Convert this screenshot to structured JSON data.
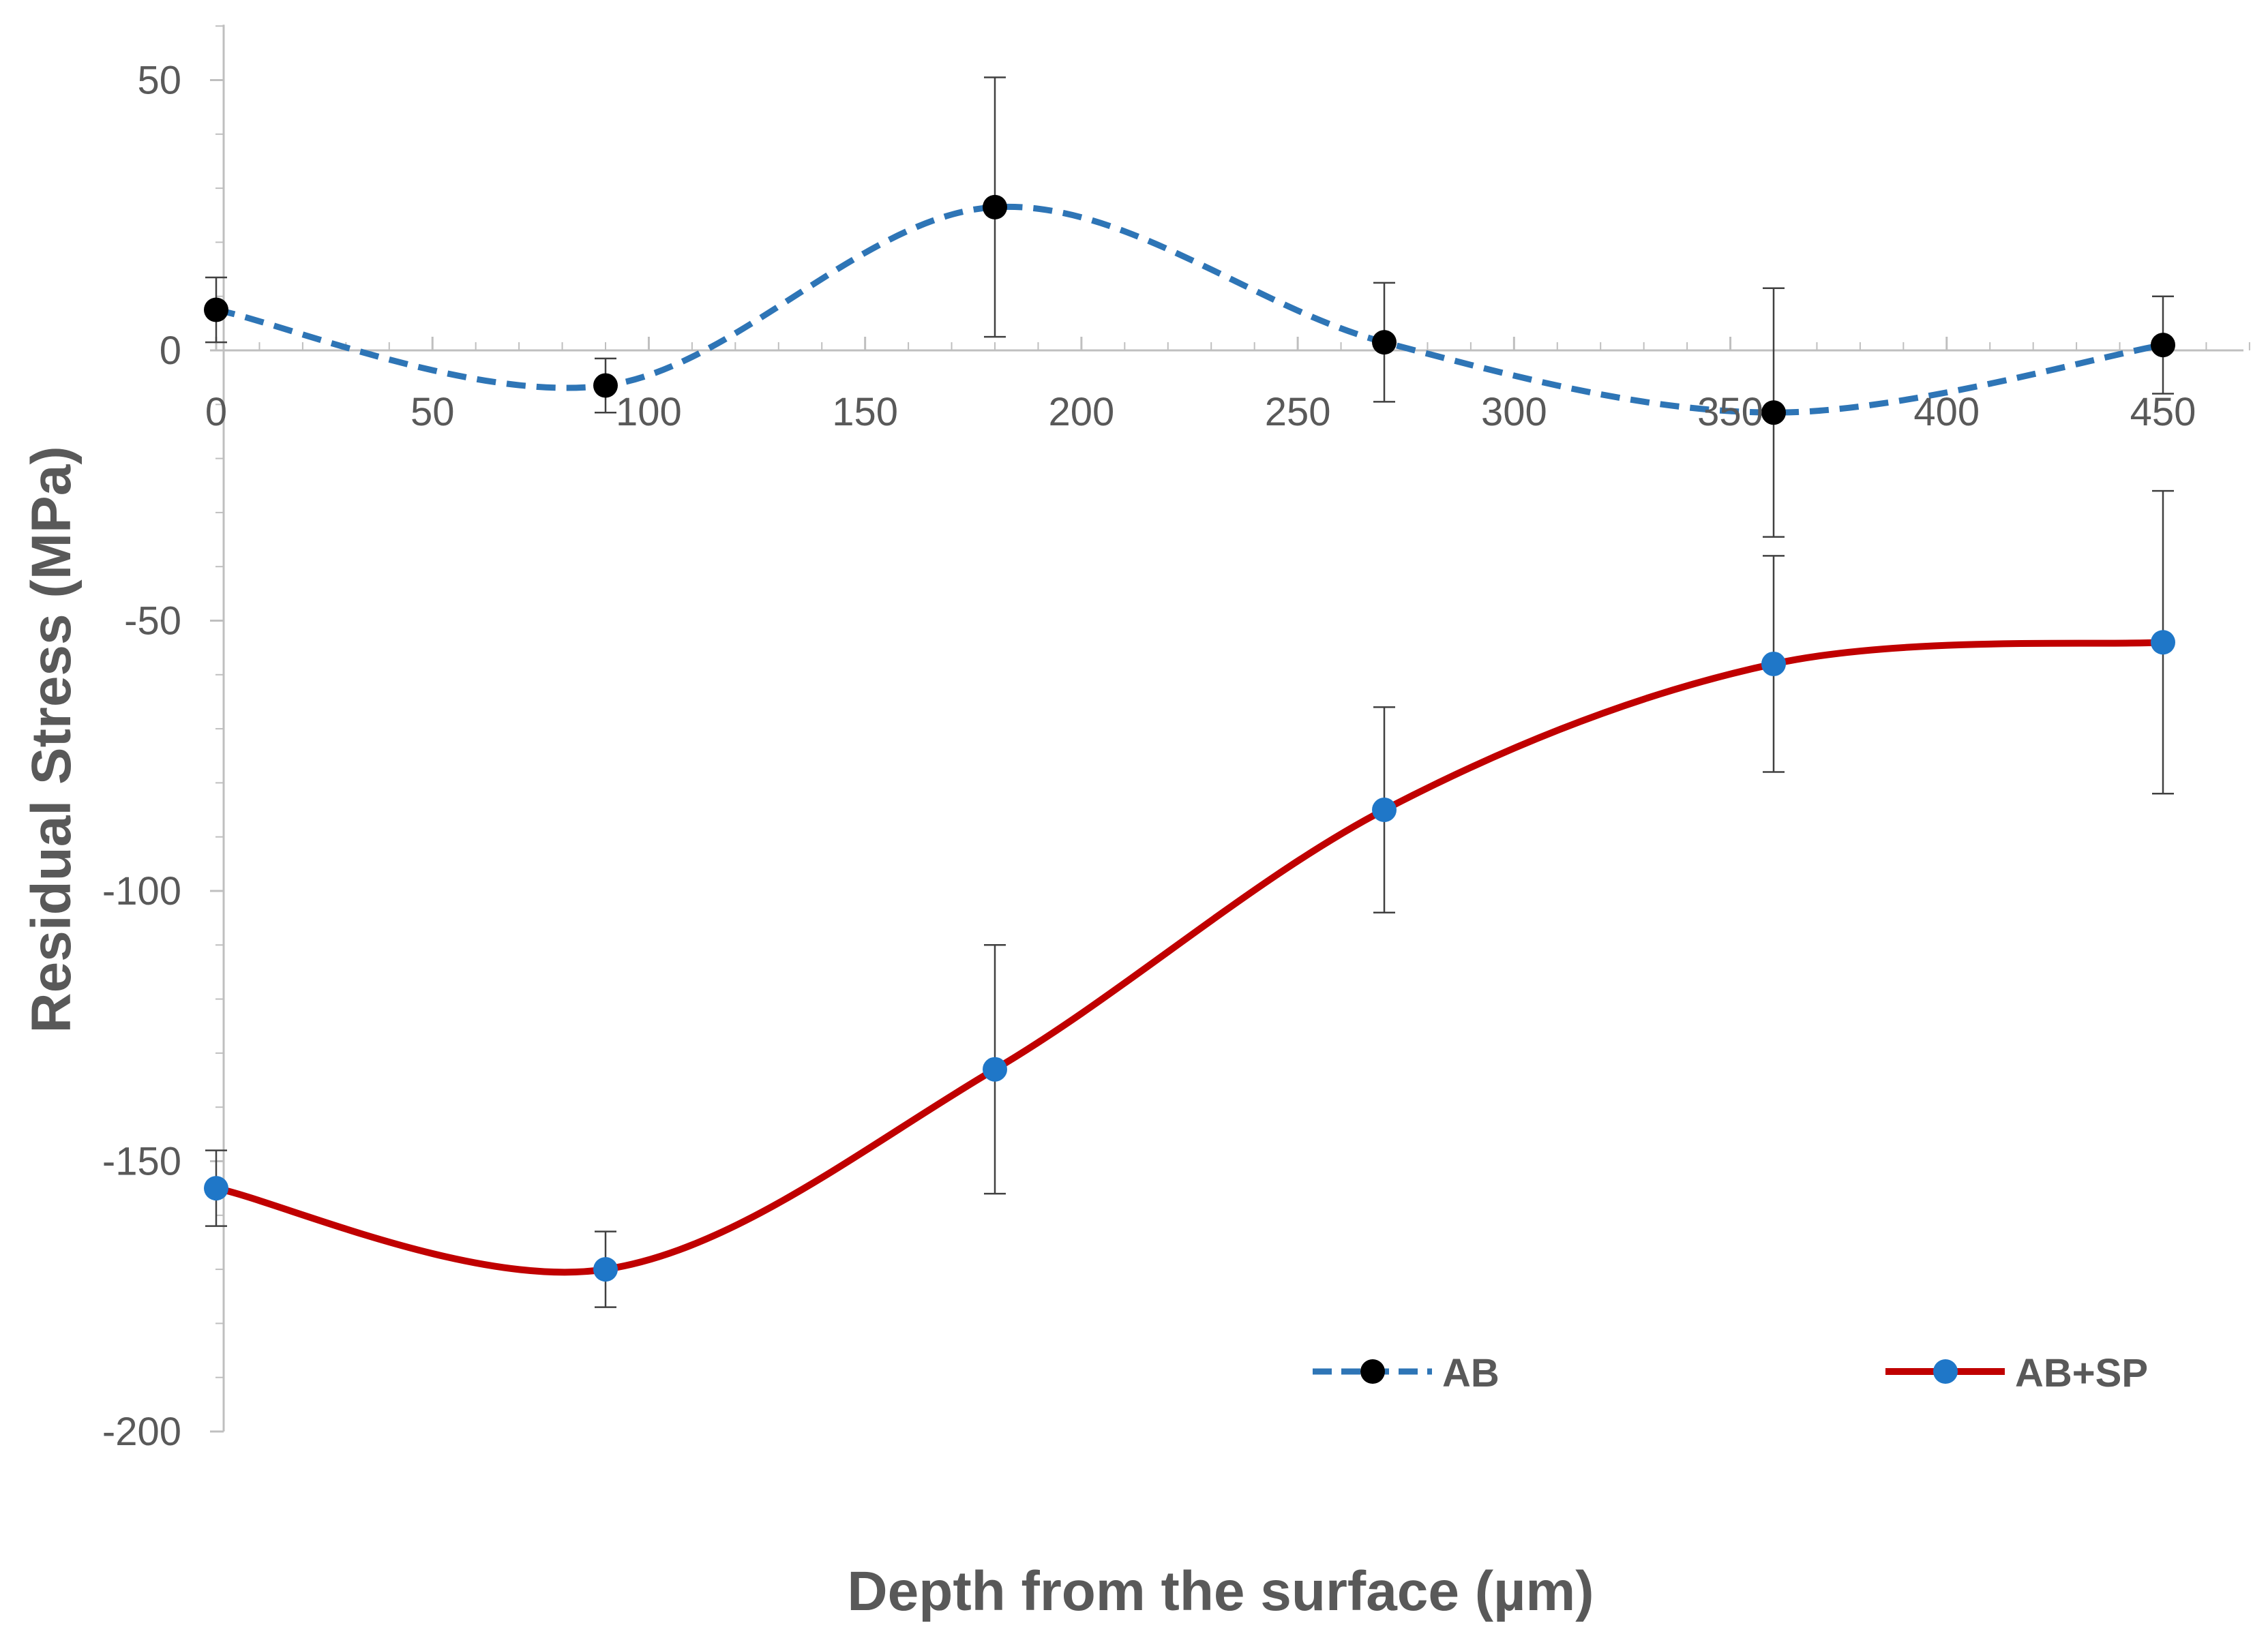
{
  "chart_data": {
    "type": "line",
    "title": "",
    "xlabel": "Depth from the surface (µm)",
    "ylabel": "Residual Stress (MPa)",
    "xlim": [
      0,
      470
    ],
    "ylim": [
      -200,
      60
    ],
    "x_ticks": [
      0,
      50,
      100,
      150,
      200,
      250,
      300,
      350,
      400,
      450
    ],
    "y_ticks": [
      50,
      0,
      -50,
      -100,
      -150,
      -200
    ],
    "x_minor_step": 10,
    "y_minor_step": 10,
    "smoothed": true,
    "legend_position": "bottom-right",
    "series": [
      {
        "name": "AB",
        "line_color": "#2E75B6",
        "line_style": "dashed",
        "marker_color": "#000000",
        "x": [
          0,
          90,
          180,
          270,
          360,
          450
        ],
        "y": [
          7.5,
          -6.5,
          26.5,
          1.5,
          -11.5,
          1.0
        ],
        "error": [
          6,
          5,
          24,
          11,
          23,
          9
        ]
      },
      {
        "name": "AB+SP",
        "line_color": "#C00000",
        "line_style": "solid",
        "marker_color": "#1F77C8",
        "x": [
          0,
          90,
          180,
          270,
          360,
          450
        ],
        "y": [
          -155,
          -170,
          -133,
          -85,
          -58,
          -54
        ],
        "error": [
          7,
          7,
          23,
          19,
          20,
          28
        ]
      }
    ]
  }
}
